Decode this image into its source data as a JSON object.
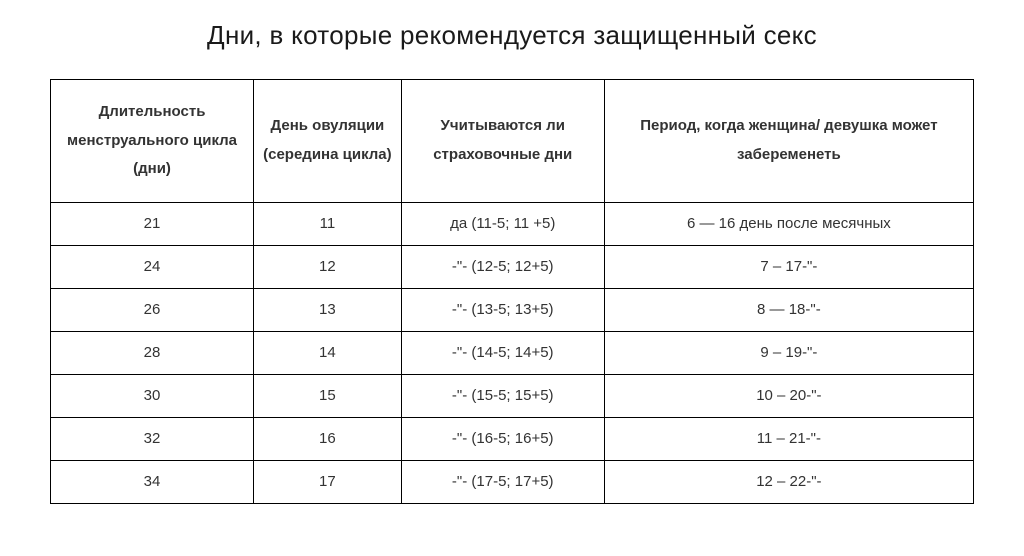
{
  "title": "Дни, в которые рекомендуется защищенный секс",
  "table": {
    "type": "table",
    "background_color": "#ffffff",
    "border_color": "#000000",
    "header_fontsize": 15,
    "cell_fontsize": 15,
    "text_color": "#333333",
    "columns": [
      {
        "label": "Длительность менструального цикла (дни)",
        "width": "22%",
        "align": "center"
      },
      {
        "label": "День овуляции (середина цикла)",
        "width": "16%",
        "align": "center"
      },
      {
        "label": "Учитываются ли страховочные дни",
        "width": "22%",
        "align": "center"
      },
      {
        "label": "Период, когда женщина/ девушка может забеременеть",
        "width": "40%",
        "align": "center"
      }
    ],
    "rows": [
      [
        "21",
        "11",
        "да (11-5; 11 +5)",
        "6 — 16 день после месячных"
      ],
      [
        "24",
        "12",
        "-\"- (12-5; 12+5)",
        "7 – 17-\"-"
      ],
      [
        "26",
        "13",
        "-\"- (13-5; 13+5)",
        "8 — 18-\"-"
      ],
      [
        "28",
        "14",
        "-\"- (14-5; 14+5)",
        "9 – 19-\"-"
      ],
      [
        "30",
        "15",
        "-\"- (15-5; 15+5)",
        "10 – 20-\"-"
      ],
      [
        "32",
        "16",
        "-\"- (16-5; 16+5)",
        "11 – 21-\"-"
      ],
      [
        "34",
        "17",
        "-\"- (17-5; 17+5)",
        "12 – 22-\"-"
      ]
    ]
  }
}
